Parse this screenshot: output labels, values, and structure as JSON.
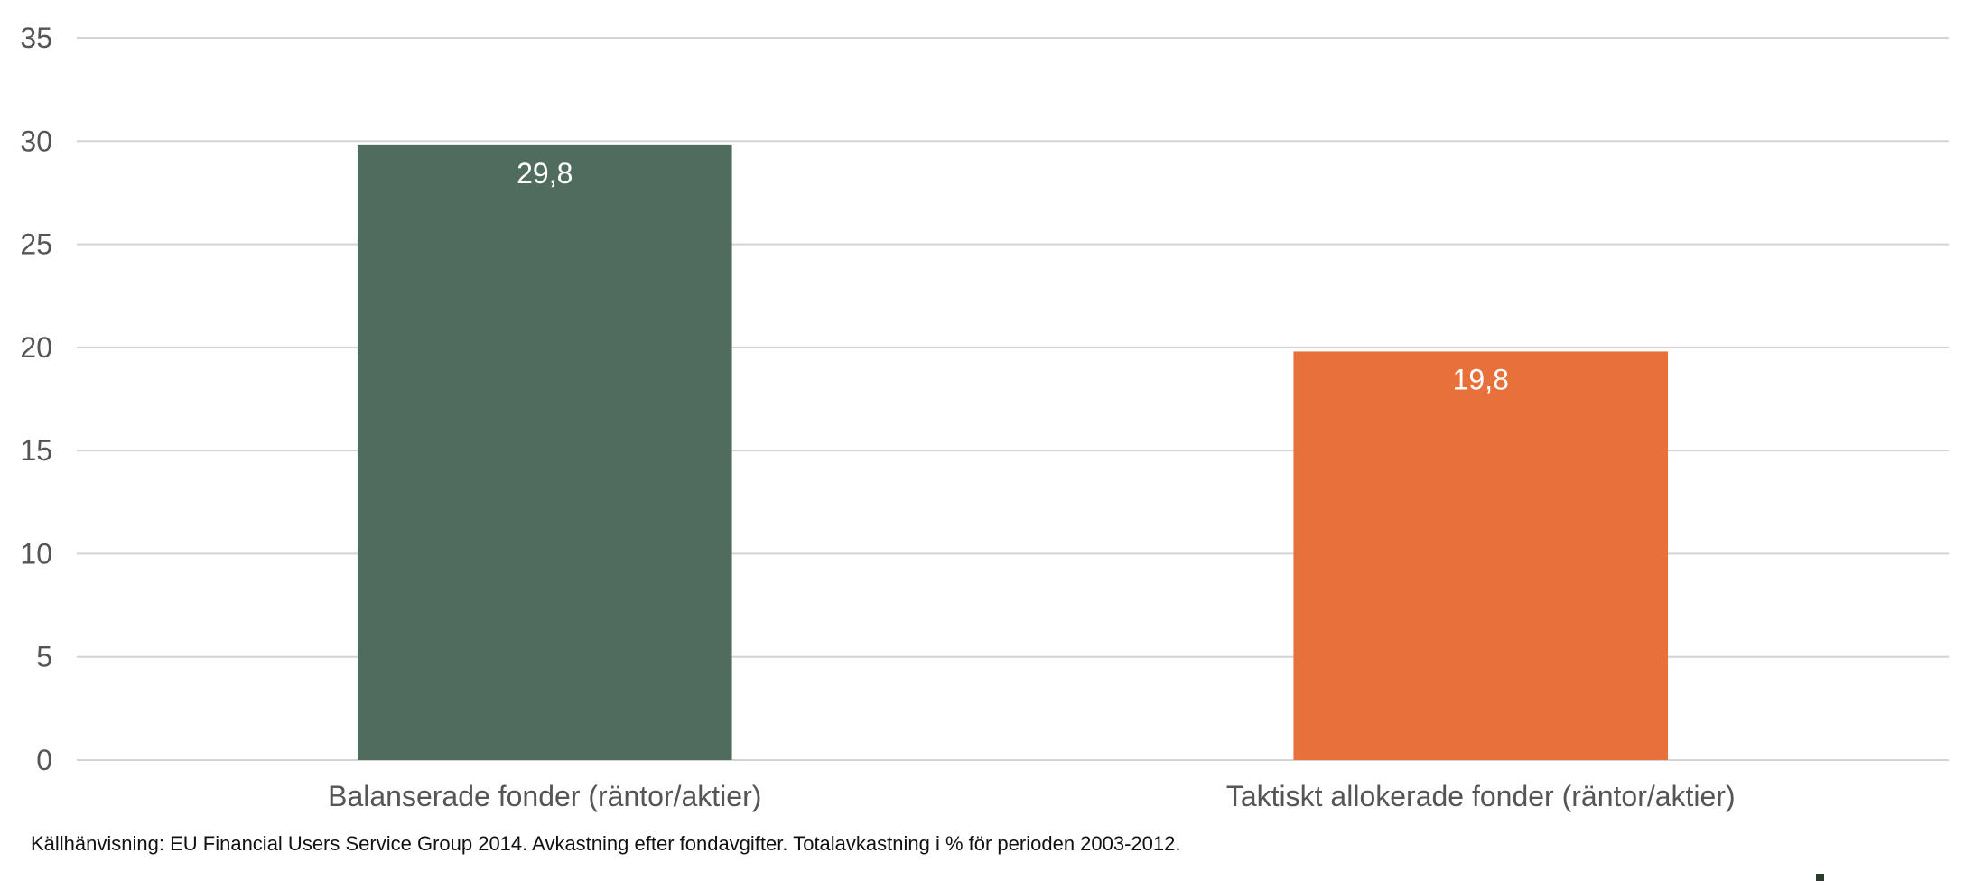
{
  "chart_data": {
    "type": "bar",
    "categories": [
      "Balanserade fonder (räntor/aktier)",
      "Taktiskt allokerade fonder (räntor/aktier)"
    ],
    "values": [
      29.8,
      19.8
    ],
    "value_labels": [
      "29,8",
      "19,8"
    ],
    "colors": [
      "#506c5e",
      "#e8703a"
    ],
    "ylim": [
      0,
      35
    ],
    "yticks": [
      0,
      5,
      10,
      15,
      20,
      25,
      30,
      35
    ],
    "ytick_labels": [
      "0",
      "5",
      "10",
      "15",
      "20",
      "25",
      "30",
      "35"
    ],
    "grid": true,
    "title": "",
    "xlabel": "",
    "ylabel": ""
  },
  "footnote": "Källhänvisning: EU Financial Users Service Group 2014. Avkastning efter fondavgifter. Totalavkastning i % för perioden 2003-2012."
}
